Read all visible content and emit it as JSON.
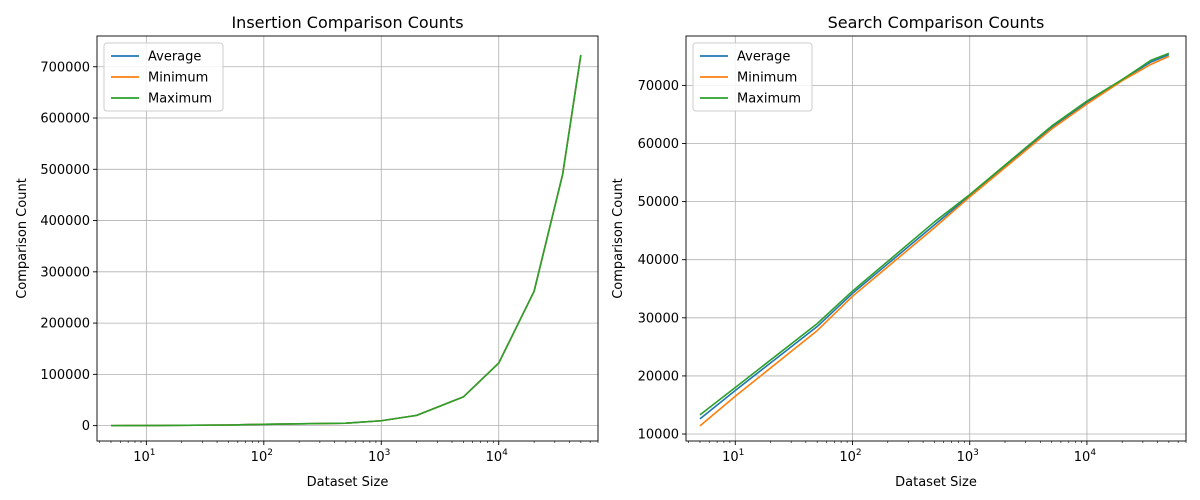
{
  "chart_data": [
    {
      "type": "line",
      "title": "Insertion Comparison Counts",
      "xlabel": "Dataset Size",
      "ylabel": "Comparison Count",
      "xscale": "log",
      "xlim": [
        3.8,
        70000
      ],
      "ylim": [
        -30000,
        760000
      ],
      "xticks": [
        10,
        100,
        1000,
        10000
      ],
      "xtick_labels": [
        "10",
        "10",
        "10",
        "10"
      ],
      "xtick_exponents": [
        "1",
        "2",
        "3",
        "4"
      ],
      "yticks": [
        0,
        100000,
        200000,
        300000,
        400000,
        500000,
        600000,
        700000
      ],
      "ytick_labels": [
        "0",
        "100000",
        "200000",
        "300000",
        "400000",
        "500000",
        "600000",
        "700000"
      ],
      "grid": true,
      "legend": "top-left",
      "x": [
        5,
        10,
        50,
        100,
        500,
        1000,
        2000,
        5000,
        10000,
        20000,
        35000,
        50000
      ],
      "series": [
        {
          "name": "Average",
          "color": "#1f77b4",
          "values": [
            10,
            45,
            1200,
            2600,
            4800,
            9500,
            20000,
            56000,
            122000,
            262000,
            490000,
            723000
          ]
        },
        {
          "name": "Minimum",
          "color": "#ff7f0e",
          "values": [
            10,
            45,
            1200,
            2600,
            4800,
            9500,
            20000,
            56000,
            122000,
            262000,
            490000,
            723000
          ]
        },
        {
          "name": "Maximum",
          "color": "#2ca02c",
          "values": [
            10,
            45,
            1200,
            2600,
            4800,
            9500,
            20000,
            56000,
            122000,
            262000,
            490000,
            723000
          ]
        }
      ]
    },
    {
      "type": "line",
      "title": "Search Comparison Counts",
      "xlabel": "Dataset Size",
      "ylabel": "Comparison Count",
      "xscale": "log",
      "xlim": [
        3.8,
        70000
      ],
      "ylim": [
        8800,
        78500
      ],
      "xticks": [
        10,
        100,
        1000,
        10000
      ],
      "xtick_labels": [
        "10",
        "10",
        "10",
        "10"
      ],
      "xtick_exponents": [
        "1",
        "2",
        "3",
        "4"
      ],
      "yticks": [
        10000,
        20000,
        30000,
        40000,
        50000,
        60000,
        70000
      ],
      "ytick_labels": [
        "10000",
        "20000",
        "30000",
        "40000",
        "50000",
        "60000",
        "70000"
      ],
      "grid": true,
      "legend": "top-left",
      "x": [
        5,
        10,
        50,
        100,
        500,
        1000,
        5000,
        10000,
        20000,
        35000,
        50000
      ],
      "series": [
        {
          "name": "Average",
          "color": "#1f77b4",
          "values": [
            12600,
            17500,
            28500,
            34200,
            46000,
            51000,
            62800,
            67000,
            71000,
            74000,
            75300
          ]
        },
        {
          "name": "Minimum",
          "color": "#ff7f0e",
          "values": [
            11400,
            16500,
            27800,
            33700,
            45500,
            50800,
            62500,
            66800,
            70800,
            73600,
            75000
          ]
        },
        {
          "name": "Maximum",
          "color": "#2ca02c",
          "values": [
            13300,
            18000,
            29000,
            34600,
            46500,
            51200,
            63000,
            67300,
            71000,
            74300,
            75500
          ]
        }
      ]
    }
  ]
}
